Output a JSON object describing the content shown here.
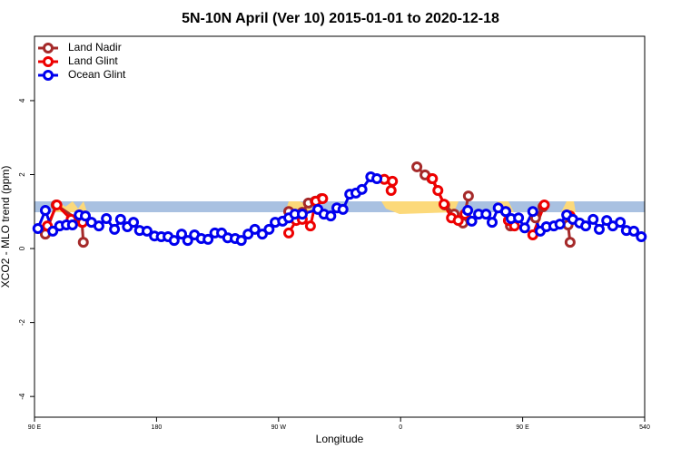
{
  "chart_data": {
    "type": "line",
    "title": "5N-10N April (Ver 10)   2015-01-01 to 2020-12-18",
    "x_label": "Longitude",
    "y_label": "XCO2 - MLO trend (ppm)",
    "xlim": [
      90,
      540
    ],
    "ylim": [
      -4.56,
      5.74
    ],
    "xticks": [
      {
        "value": 90,
        "label": "90 E"
      },
      180,
      {
        "value": 270,
        "label": "90 W"
      },
      {
        "value": 360,
        "label": "0"
      },
      {
        "value": 450,
        "label": "90 E"
      },
      540
    ],
    "yticks": [
      -4,
      -2,
      0,
      2,
      4
    ],
    "legend": "top-left",
    "series": [
      {
        "name": "Land Nadir",
        "color": "#a52a2a",
        "x": [
          98,
          106,
          125,
          126,
          null,
          277.5,
          287.5,
          292,
          297,
          301.5,
          null,
          372,
          378,
          383,
          392.5,
          399.5,
          406,
          410,
          null,
          437.5,
          441,
          null,
          459.5,
          465,
          null,
          483.5,
          485
        ],
        "values": [
          0.39,
          1.18,
          0.71,
          0.17,
          null,
          1.0,
          0.98,
          1.23,
          1.28,
          1.35,
          null,
          2.21,
          1.99,
          1.89,
          1.18,
          0.93,
          0.69,
          1.42,
          null,
          1.0,
          0.61,
          null,
          0.83,
          1.13,
          null,
          0.64,
          0.17
        ]
      },
      {
        "name": "Land Glint",
        "color": "#ee0000",
        "x": [
          99.5,
          106.5,
          117,
          125.5,
          null,
          277.5,
          283,
          287.5,
          293.5,
          297.5,
          302.5,
          null,
          348,
          354,
          353,
          null,
          383.5,
          387.5,
          392,
          397.5,
          402.5,
          407.5,
          null,
          439.5,
          444,
          null,
          457.5,
          466,
          null,
          485
        ],
        "values": [
          0.61,
          1.18,
          0.79,
          0.71,
          null,
          0.42,
          0.76,
          0.79,
          0.61,
          1.28,
          1.35,
          null,
          1.87,
          1.82,
          1.57,
          null,
          1.89,
          1.57,
          1.2,
          0.83,
          0.76,
          0.93,
          null,
          0.76,
          0.61,
          null,
          0.37,
          1.18,
          null,
          0.88
        ]
      },
      {
        "name": "Ocean Glint",
        "color": "#0000ee",
        "x": [
          92.5,
          98,
          103.5,
          108.5,
          113.5,
          118,
          123,
          127.5,
          132,
          137.5,
          143,
          149,
          153.5,
          158.5,
          163,
          167.5,
          173,
          178.5,
          183.5,
          188.5,
          193,
          198.5,
          203,
          208,
          213,
          218,
          223,
          228,
          232.5,
          238,
          242.5,
          247.5,
          252.5,
          258,
          263,
          267.5,
          273,
          277.5,
          282,
          287.5,
          299,
          303.5,
          308.5,
          313,
          317.5,
          322.5,
          327,
          331.5,
          338,
          342.5,
          null,
          409.5,
          412.5,
          417.5,
          423,
          427.5,
          432,
          437.5,
          441.5,
          447,
          451.5,
          457.5,
          463,
          467.5,
          473,
          477.5,
          482.5,
          487,
          492,
          496.5,
          502,
          506.5,
          512,
          516.5,
          522,
          526.5,
          532,
          537.5
        ],
        "values": [
          0.54,
          1.03,
          0.47,
          0.61,
          0.64,
          0.64,
          0.91,
          0.88,
          0.71,
          0.61,
          0.81,
          0.52,
          0.79,
          0.59,
          0.71,
          0.49,
          0.47,
          0.34,
          0.32,
          0.32,
          0.22,
          0.39,
          0.22,
          0.37,
          0.27,
          0.25,
          0.42,
          0.42,
          0.29,
          0.27,
          0.22,
          0.39,
          0.52,
          0.39,
          0.52,
          0.71,
          0.74,
          0.83,
          0.93,
          0.93,
          1.06,
          0.93,
          0.88,
          1.1,
          1.06,
          1.47,
          1.5,
          1.6,
          1.94,
          1.89,
          null,
          1.03,
          0.74,
          0.93,
          0.93,
          0.71,
          1.1,
          1.0,
          0.81,
          0.83,
          0.56,
          1.0,
          0.47,
          0.59,
          0.61,
          0.66,
          0.91,
          0.79,
          0.69,
          0.61,
          0.79,
          0.52,
          0.76,
          0.61,
          0.71,
          0.49,
          0.47,
          0.32
        ]
      }
    ]
  }
}
